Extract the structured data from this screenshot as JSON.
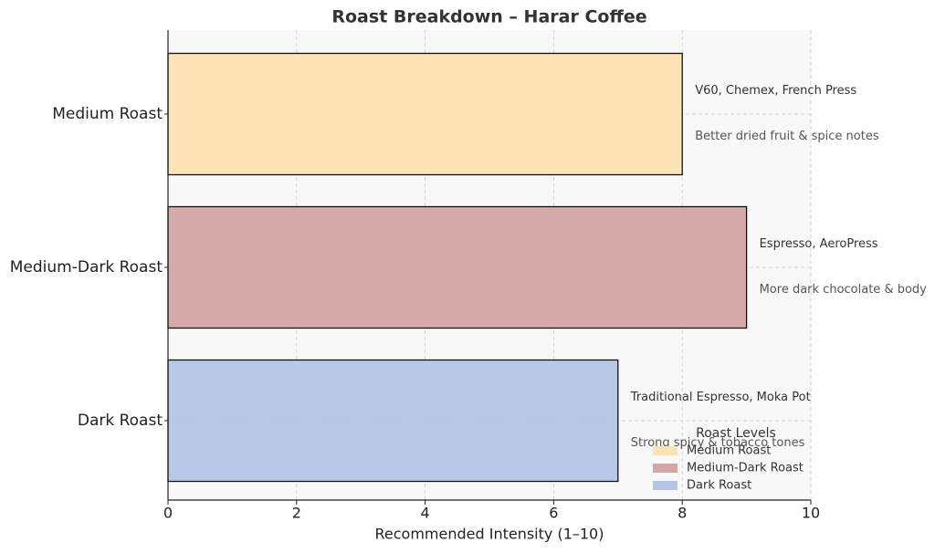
{
  "chart_data": {
    "type": "barh",
    "title": "Roast Breakdown – Harar Coffee",
    "x_label": "Recommended Intensity (1–10)",
    "categories": [
      "Medium Roast",
      "Medium-Dark Roast",
      "Dark Roast"
    ],
    "values": [
      8,
      9,
      7
    ],
    "colors": [
      "#fde3b3",
      "#d3a5a5",
      "#b4c6e7"
    ],
    "brewing_methods": [
      "V60, Chemex, French Press",
      "Espresso, AeroPress",
      "Traditional Espresso, Moka Pot"
    ],
    "flavor_notes": [
      "Better dried fruit & spice notes",
      "More dark chocolate & body",
      "Strong spicy & tobacco tones"
    ],
    "xlim": [
      0,
      10
    ],
    "xticks": [
      0,
      2,
      4,
      6,
      8,
      10
    ],
    "grid": true,
    "legend_title": "Roast Levels",
    "legend_position": "lower right"
  }
}
